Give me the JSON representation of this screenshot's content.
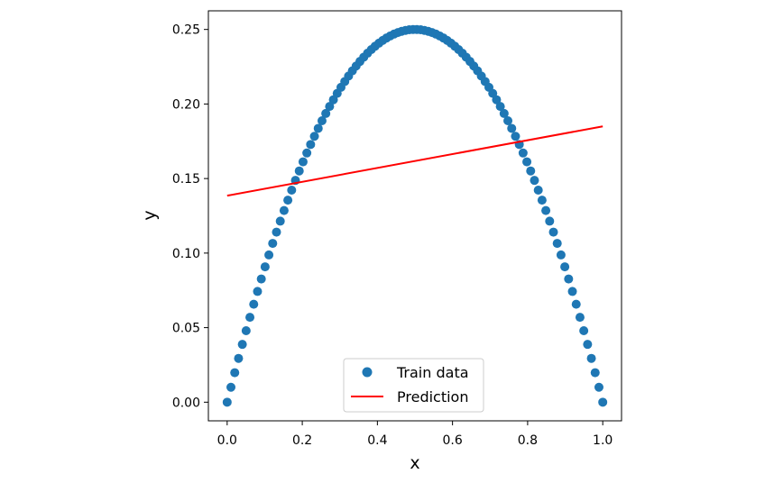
{
  "chart_data": {
    "type": "scatter",
    "title": "",
    "xlabel": "x",
    "ylabel": "y",
    "xlim": [
      -0.05,
      1.05
    ],
    "ylim": [
      -0.0125,
      0.2625
    ],
    "xticks": [
      "0.0",
      "0.2",
      "0.4",
      "0.6",
      "0.8",
      "1.0"
    ],
    "xtick_values": [
      0.0,
      0.2,
      0.4,
      0.6,
      0.8,
      1.0
    ],
    "yticks": [
      "0.00",
      "0.05",
      "0.10",
      "0.15",
      "0.20",
      "0.25"
    ],
    "ytick_values": [
      0.0,
      0.05,
      0.1,
      0.15,
      0.2,
      0.25
    ],
    "grid": false,
    "legend_position": "lower-center",
    "series": [
      {
        "name": "Train data",
        "kind": "scatter",
        "color": "#1f77b4",
        "function": "y = x * (1 - x)",
        "n_points": 100,
        "x_range": [
          0.0,
          1.0
        ]
      },
      {
        "name": "Prediction",
        "kind": "line",
        "color": "#ff0000",
        "x": [
          0.0,
          1.0
        ],
        "y": [
          0.1385,
          0.185
        ]
      }
    ]
  }
}
